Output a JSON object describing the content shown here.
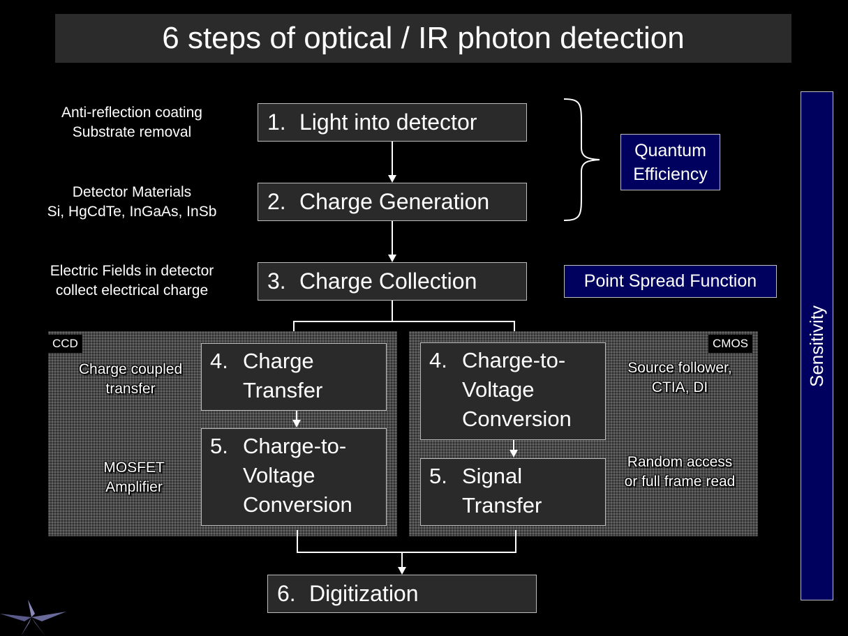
{
  "title": "6 steps of optical / IR photon detection",
  "steps": {
    "s1": {
      "num": "1.",
      "label": "Light into detector"
    },
    "s2": {
      "num": "2.",
      "label": "Charge Generation"
    },
    "s3": {
      "num": "3.",
      "label": "Charge Collection"
    },
    "ccd4": {
      "num": "4.",
      "line1": "Charge",
      "line2": "Transfer"
    },
    "ccd5": {
      "num": "5.",
      "line1": "Charge-to-",
      "line2": "Voltage",
      "line3": "Conversion"
    },
    "cmos4": {
      "num": "4.",
      "line1": "Charge-to-",
      "line2": "Voltage",
      "line3": "Conversion"
    },
    "cmos5": {
      "num": "5.",
      "line1": "Signal",
      "line2": "Transfer"
    },
    "s6": {
      "num": "6.",
      "label": "Digitization"
    }
  },
  "notes": {
    "n1": [
      "Anti-reflection coating",
      "Substrate removal"
    ],
    "n2": [
      "Detector Materials",
      "Si, HgCdTe, InGaAs, InSb"
    ],
    "n3": [
      "Electric Fields in detector",
      "collect electrical charge"
    ],
    "ccd4": [
      "Charge coupled",
      "transfer"
    ],
    "ccd5": [
      "MOSFET",
      "Amplifier"
    ],
    "cmos4": [
      "Source follower,",
      "CTIA, DI"
    ],
    "cmos5": [
      "Random access",
      "or full frame read"
    ]
  },
  "panels": {
    "ccd": "CCD",
    "cmos": "CMOS"
  },
  "callouts": {
    "qe": [
      "Quantum",
      "Efficiency"
    ],
    "psf": "Point Spread Function",
    "sensitivity": "Sensitivity"
  },
  "colors": {
    "navy": "#00005f",
    "box": "#2a2a2a",
    "background": "#000000"
  }
}
